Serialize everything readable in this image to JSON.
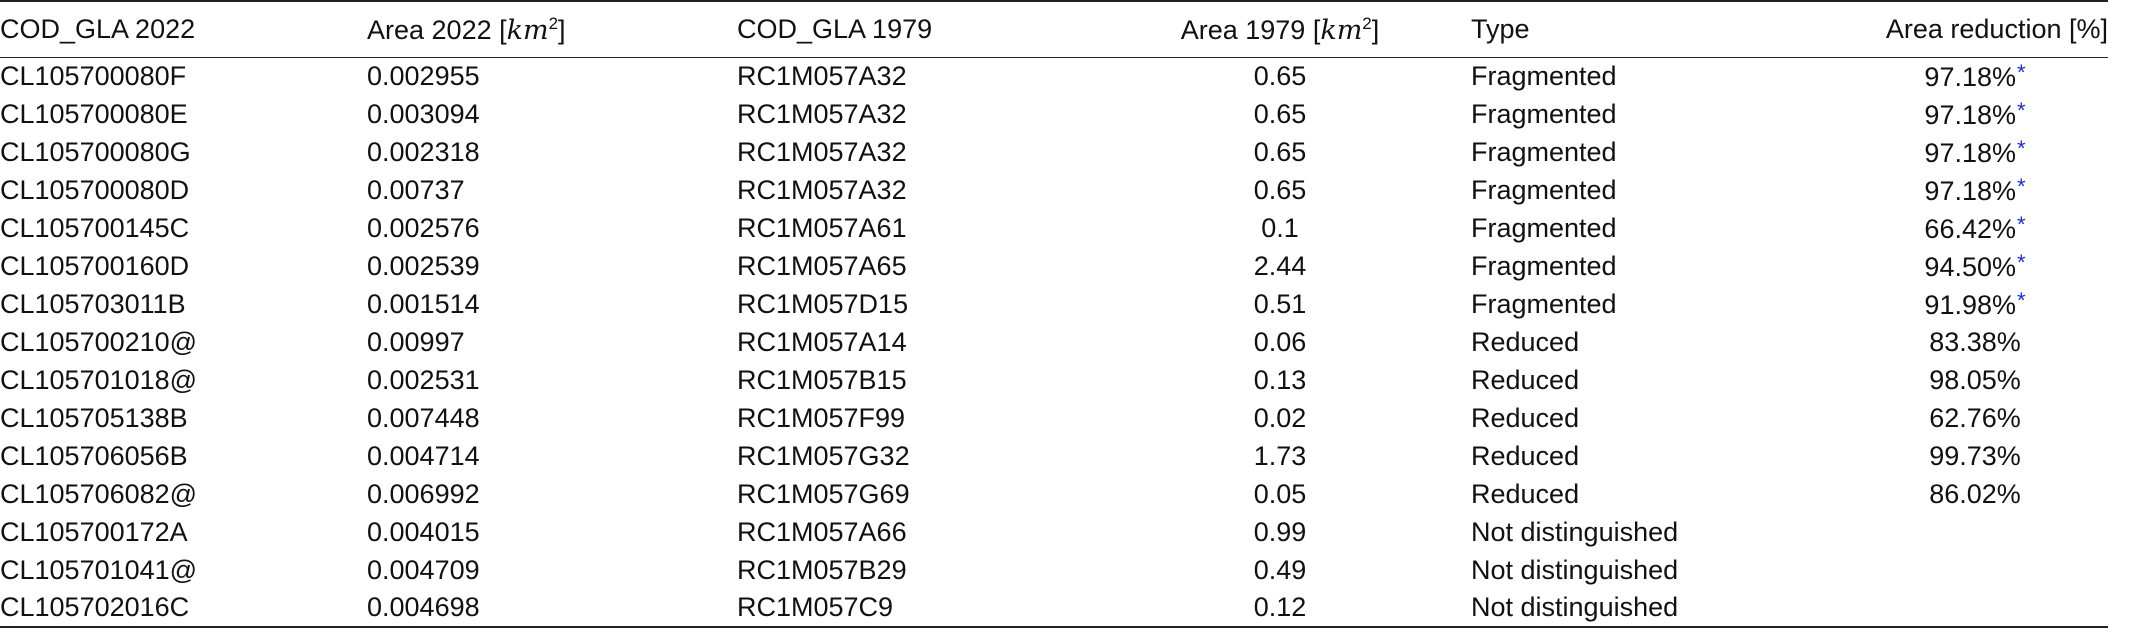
{
  "table": {
    "headers": {
      "cod_2022": "COD_GLA 2022",
      "area_2022_prefix": "Area 2022 [",
      "area_2022_unit": "km",
      "area_2022_exp": "2",
      "area_2022_suffix": "]",
      "cod_1979": "COD_GLA 1979",
      "area_1979_prefix": "Area 1979 [",
      "area_1979_unit": "km",
      "area_1979_exp": "2",
      "area_1979_suffix": "]",
      "type": "Type",
      "reduction": "Area reduction [%]"
    },
    "star_marker": "*",
    "rows": [
      {
        "cod_2022": "CL105700080F",
        "area_2022": "0.002955",
        "cod_1979": "RC1M057A32",
        "area_1979": "0.65",
        "type": "Fragmented",
        "reduction": "97.18%",
        "starred": true
      },
      {
        "cod_2022": "CL105700080E",
        "area_2022": "0.003094",
        "cod_1979": "RC1M057A32",
        "area_1979": "0.65",
        "type": "Fragmented",
        "reduction": "97.18%",
        "starred": true
      },
      {
        "cod_2022": "CL105700080G",
        "area_2022": "0.002318",
        "cod_1979": "RC1M057A32",
        "area_1979": "0.65",
        "type": "Fragmented",
        "reduction": "97.18%",
        "starred": true
      },
      {
        "cod_2022": "CL105700080D",
        "area_2022": "0.00737",
        "cod_1979": "RC1M057A32",
        "area_1979": "0.65",
        "type": "Fragmented",
        "reduction": "97.18%",
        "starred": true
      },
      {
        "cod_2022": "CL105700145C",
        "area_2022": "0.002576",
        "cod_1979": "RC1M057A61",
        "area_1979": "0.1",
        "type": "Fragmented",
        "reduction": "66.42%",
        "starred": true
      },
      {
        "cod_2022": "CL105700160D",
        "area_2022": "0.002539",
        "cod_1979": "RC1M057A65",
        "area_1979": "2.44",
        "type": "Fragmented",
        "reduction": "94.50%",
        "starred": true
      },
      {
        "cod_2022": "CL105703011B",
        "area_2022": "0.001514",
        "cod_1979": "RC1M057D15",
        "area_1979": "0.51",
        "type": "Fragmented",
        "reduction": "91.98%",
        "starred": true
      },
      {
        "cod_2022": "CL105700210@",
        "area_2022": "0.00997",
        "cod_1979": "RC1M057A14",
        "area_1979": "0.06",
        "type": "Reduced",
        "reduction": "83.38%",
        "starred": false
      },
      {
        "cod_2022": "CL105701018@",
        "area_2022": "0.002531",
        "cod_1979": "RC1M057B15",
        "area_1979": "0.13",
        "type": "Reduced",
        "reduction": "98.05%",
        "starred": false
      },
      {
        "cod_2022": "CL105705138B",
        "area_2022": "0.007448",
        "cod_1979": "RC1M057F99",
        "area_1979": "0.02",
        "type": "Reduced",
        "reduction": "62.76%",
        "starred": false
      },
      {
        "cod_2022": "CL105706056B",
        "area_2022": "0.004714",
        "cod_1979": "RC1M057G32",
        "area_1979": "1.73",
        "type": "Reduced",
        "reduction": "99.73%",
        "starred": false
      },
      {
        "cod_2022": "CL105706082@",
        "area_2022": "0.006992",
        "cod_1979": "RC1M057G69",
        "area_1979": "0.05",
        "type": "Reduced",
        "reduction": "86.02%",
        "starred": false
      },
      {
        "cod_2022": "CL105700172A",
        "area_2022": "0.004015",
        "cod_1979": "RC1M057A66",
        "area_1979": "0.99",
        "type": "Not distinguished",
        "reduction": "",
        "starred": false
      },
      {
        "cod_2022": "CL105701041@",
        "area_2022": "0.004709",
        "cod_1979": "RC1M057B29",
        "area_1979": "0.49",
        "type": "Not distinguished",
        "reduction": "",
        "starred": false
      },
      {
        "cod_2022": "CL105702016C",
        "area_2022": "0.004698",
        "cod_1979": "RC1M057C9",
        "area_1979": "0.12",
        "type": "Not distinguished",
        "reduction": "",
        "starred": false
      }
    ],
    "colors": {
      "text": "#111111",
      "rule": "#222222",
      "star": "#1a2bd6"
    }
  }
}
